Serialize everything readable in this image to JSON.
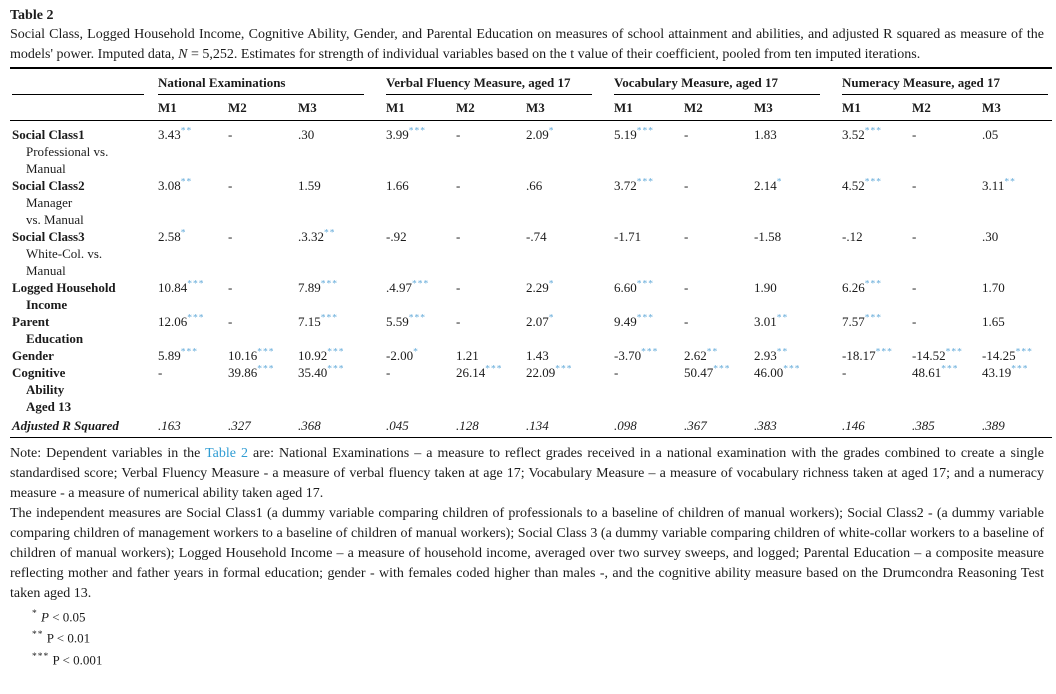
{
  "table": {
    "label": "Table 2",
    "caption": {
      "part1": "Social Class, Logged Household Income, Cognitive Ability, Gender, and Parental Education on measures of school attainment and abilities, and adjusted R squared as measure of the models' power. Imputed data, ",
      "n_italic": "N",
      "part2": " = 5,252. Estimates for strength of individual variables based on the t value of their coefficient, pooled from ten imputed iterations."
    },
    "groups": [
      {
        "label": "National Examinations"
      },
      {
        "label": "Verbal Fluency Measure, aged 17"
      },
      {
        "label": "Vocabulary Measure, aged 17"
      },
      {
        "label": "Numeracy Measure, aged 17"
      }
    ],
    "model_headers": [
      "M1",
      "M2",
      "M3"
    ],
    "rows": [
      {
        "label": "Social Class1",
        "sub": [
          "Professional vs.",
          "Manual"
        ],
        "sub_bold": false,
        "italic": false,
        "cells": [
          {
            "t": "3.43",
            "s": "**"
          },
          {
            "t": "-"
          },
          {
            "t": ".30"
          },
          {
            "t": "3.99",
            "s": "***"
          },
          {
            "t": "-"
          },
          {
            "t": "2.09",
            "s": "*"
          },
          {
            "t": "5.19",
            "s": "***"
          },
          {
            "t": "-"
          },
          {
            "t": "1.83"
          },
          {
            "t": "3.52",
            "s": "***"
          },
          {
            "t": "-"
          },
          {
            "t": ".05"
          }
        ]
      },
      {
        "label": "Social Class2",
        "sub": [
          "Manager",
          "vs. Manual"
        ],
        "sub_bold": false,
        "italic": false,
        "cells": [
          {
            "t": "3.08",
            "s": "**"
          },
          {
            "t": "-"
          },
          {
            "t": "1.59"
          },
          {
            "t": "1.66"
          },
          {
            "t": "-"
          },
          {
            "t": ".66"
          },
          {
            "t": "3.72",
            "s": "***"
          },
          {
            "t": "-"
          },
          {
            "t": "2.14",
            "s": "*"
          },
          {
            "t": "4.52",
            "s": "***"
          },
          {
            "t": "-"
          },
          {
            "t": "3.11",
            "s": "**"
          }
        ]
      },
      {
        "label": "Social Class3",
        "sub": [
          "White-Col. vs.",
          "Manual"
        ],
        "sub_bold": false,
        "italic": false,
        "cells": [
          {
            "t": "2.58",
            "s": "*"
          },
          {
            "t": "-"
          },
          {
            "t": ".3.32",
            "s": "**"
          },
          {
            "t": "-.92"
          },
          {
            "t": "-"
          },
          {
            "t": "-.74"
          },
          {
            "t": "-1.71"
          },
          {
            "t": "-"
          },
          {
            "t": "-1.58"
          },
          {
            "t": "-.12"
          },
          {
            "t": "-"
          },
          {
            "t": ".30"
          }
        ]
      },
      {
        "label": "Logged Household",
        "sub": [
          "Income"
        ],
        "sub_bold": true,
        "italic": false,
        "cells": [
          {
            "t": "10.84",
            "s": "***"
          },
          {
            "t": "-"
          },
          {
            "t": "7.89",
            "s": "***"
          },
          {
            "t": ".4.97",
            "s": "***"
          },
          {
            "t": "-"
          },
          {
            "t": "2.29",
            "s": "*"
          },
          {
            "t": "6.60",
            "s": "***"
          },
          {
            "t": "-"
          },
          {
            "t": "1.90"
          },
          {
            "t": "6.26",
            "s": "***"
          },
          {
            "t": "-"
          },
          {
            "t": "1.70"
          }
        ]
      },
      {
        "label": "Parent",
        "sub": [
          "Education"
        ],
        "sub_bold": true,
        "italic": false,
        "cells": [
          {
            "t": "12.06",
            "s": "***"
          },
          {
            "t": "-"
          },
          {
            "t": "7.15",
            "s": "***"
          },
          {
            "t": "5.59",
            "s": "***"
          },
          {
            "t": "-"
          },
          {
            "t": "2.07",
            "s": "*"
          },
          {
            "t": "9.49",
            "s": "***"
          },
          {
            "t": "-"
          },
          {
            "t": "3.01",
            "s": "**"
          },
          {
            "t": "7.57",
            "s": "***"
          },
          {
            "t": "-"
          },
          {
            "t": "1.65"
          }
        ]
      },
      {
        "label": "Gender",
        "sub": [],
        "sub_bold": false,
        "italic": false,
        "cells": [
          {
            "t": "5.89",
            "s": "***"
          },
          {
            "t": "10.16",
            "s": "***"
          },
          {
            "t": "10.92",
            "s": "***"
          },
          {
            "t": "-2.00",
            "s": "*"
          },
          {
            "t": "1.21"
          },
          {
            "t": "1.43"
          },
          {
            "t": "-3.70",
            "s": "***"
          },
          {
            "t": "2.62",
            "s": "**"
          },
          {
            "t": "2.93",
            "s": "**"
          },
          {
            "t": "-18.17",
            "s": "***"
          },
          {
            "t": "-14.52",
            "s": "***"
          },
          {
            "t": "-14.25",
            "s": "***"
          }
        ]
      },
      {
        "label": "Cognitive",
        "sub": [
          "Ability",
          "Aged 13"
        ],
        "sub_bold": true,
        "italic": false,
        "cells": [
          {
            "t": "-"
          },
          {
            "t": "39.86",
            "s": "***"
          },
          {
            "t": "35.40",
            "s": "***"
          },
          {
            "t": "-"
          },
          {
            "t": "26.14",
            "s": "***"
          },
          {
            "t": "22.09",
            "s": "***"
          },
          {
            "t": "-"
          },
          {
            "t": "50.47",
            "s": "***"
          },
          {
            "t": "46.00",
            "s": "***"
          },
          {
            "t": "-"
          },
          {
            "t": "48.61",
            "s": "***"
          },
          {
            "t": "43.19",
            "s": "***"
          }
        ]
      },
      {
        "label": "Adjusted R Squared",
        "sub": [],
        "sub_bold": false,
        "italic": true,
        "cells": [
          {
            "t": ".163"
          },
          {
            "t": ".327"
          },
          {
            "t": ".368"
          },
          {
            "t": ".045"
          },
          {
            "t": ".128"
          },
          {
            "t": ".134"
          },
          {
            "t": ".098"
          },
          {
            "t": ".367"
          },
          {
            "t": ".383"
          },
          {
            "t": ".146"
          },
          {
            "t": ".385"
          },
          {
            "t": ".389"
          }
        ]
      }
    ],
    "star_color": "#5fa8d8"
  },
  "notes": {
    "p1_pre": "Note: Dependent variables in the ",
    "p1_link": "Table 2",
    "p1_post": " are: National Examinations – a measure to reflect grades received in a national examination with the grades combined to create a single standardised score; Verbal Fluency Measure - a measure of verbal fluency taken at age 17; Vocabulary Measure – a measure of vocabulary richness taken at aged 17; and a numeracy measure - a measure of numerical ability taken aged 17.",
    "p2": "The independent measures are Social Class1 (a dummy variable comparing children of professionals to a baseline of children of manual workers); Social Class2 - (a dummy variable comparing children of management workers to a baseline of children of manual workers); Social Class 3 (a dummy variable comparing children of white-collar workers to a baseline of children of manual workers); Logged Household Income – a measure of household income, averaged over two survey sweeps, and logged; Parental Education – a composite measure reflecting mother and father years in formal education; gender - with females coded higher than males -, and the cognitive ability measure based on the Drumcondra Reasoning Test taken aged 13.",
    "link_color": "#2f9cd3"
  },
  "footnotes": [
    {
      "stars": "*",
      "p": "P",
      "rest": " < 0.05"
    },
    {
      "stars": "**",
      "p": "P",
      "rest": " < 0.01"
    },
    {
      "stars": "***",
      "p": "P",
      "rest": " < 0.001"
    }
  ]
}
